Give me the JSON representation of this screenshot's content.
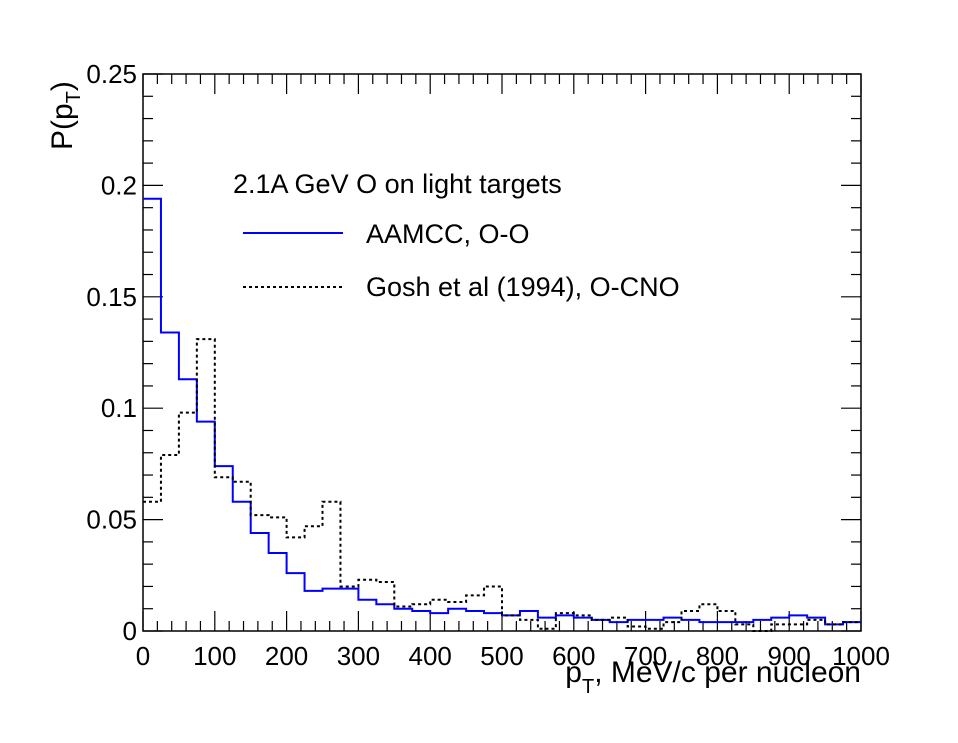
{
  "chart_data": {
    "type": "histogram",
    "title": "",
    "xlabel": {
      "main": "p",
      "sub": "T",
      "rest": ", MeV/c per nucleon"
    },
    "ylabel": {
      "main": "P(p",
      "sub": "T",
      "rest": ")"
    },
    "xlim": [
      0,
      1000
    ],
    "ylim": [
      0,
      0.25
    ],
    "xticks": [
      "0",
      "100",
      "200",
      "300",
      "400",
      "500",
      "600",
      "700",
      "800",
      "900",
      "1000"
    ],
    "yticks": [
      "0",
      "0.05",
      "0.1",
      "0.15",
      "0.2",
      "0.25"
    ],
    "bin_edges": [
      0,
      25,
      50,
      75,
      100,
      125,
      150,
      175,
      200,
      225,
      250,
      275,
      300,
      325,
      350,
      375,
      400,
      425,
      450,
      475,
      500,
      525,
      550,
      575,
      600,
      625,
      650,
      675,
      700,
      725,
      750,
      775,
      800,
      825,
      850,
      875,
      900,
      925,
      950,
      975,
      1000
    ],
    "legend": {
      "header": "2.1A GeV O on light targets",
      "placement": "upper-center"
    },
    "series": [
      {
        "name": "AAMCC, O-O",
        "color": "#0000ff",
        "style": "solid",
        "values": [
          0.194,
          0.134,
          0.113,
          0.094,
          0.074,
          0.058,
          0.044,
          0.035,
          0.026,
          0.018,
          0.019,
          0.019,
          0.014,
          0.012,
          0.01,
          0.009,
          0.008,
          0.01,
          0.009,
          0.008,
          0.007,
          0.009,
          0.006,
          0.007,
          0.006,
          0.005,
          0.004,
          0.005,
          0.005,
          0.006,
          0.005,
          0.004,
          0.004,
          0.004,
          0.005,
          0.006,
          0.007,
          0.006,
          0.003,
          0.004
        ]
      },
      {
        "name": "Gosh et al (1994), O-CNO",
        "color": "#000000",
        "style": "dotted",
        "values": [
          0.058,
          0.079,
          0.098,
          0.131,
          0.069,
          0.067,
          0.052,
          0.051,
          0.042,
          0.047,
          0.058,
          0.02,
          0.023,
          0.022,
          0.011,
          0.012,
          0.014,
          0.013,
          0.016,
          0.02,
          0.007,
          0.005,
          0.001,
          0.008,
          0.007,
          0.005,
          0.006,
          0.002,
          0.001,
          0.004,
          0.009,
          0.012,
          0.009,
          0.003,
          0.0,
          0.003,
          0.003,
          0.005,
          0.003,
          0.004
        ]
      }
    ]
  }
}
